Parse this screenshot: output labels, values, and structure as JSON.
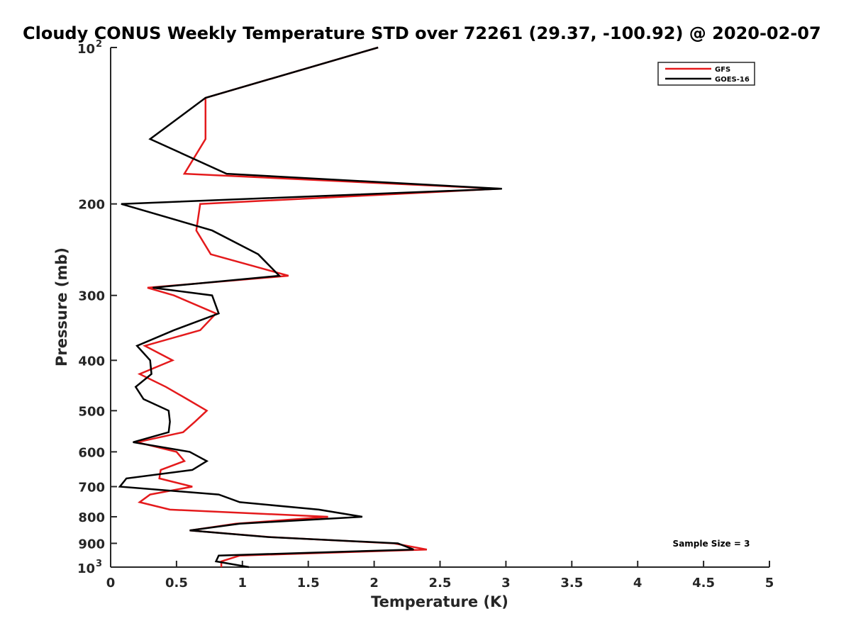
{
  "chart_data": {
    "type": "line",
    "title": "Cloudy CONUS Weekly Temperature STD over 72261 (29.37, -100.92) @ 2020-02-07",
    "xlabel": "Temperature (K)",
    "ylabel": "Pressure (mb)",
    "xlim": [
      0,
      5
    ],
    "ylim": [
      100,
      1000
    ],
    "y_scale": "log",
    "y_reversed": true,
    "grid": false,
    "legend_position": "top-right",
    "x_ticks": [
      "0",
      "0.5",
      "1",
      "1.5",
      "2",
      "2.5",
      "3",
      "3.5",
      "4",
      "4.5",
      "5"
    ],
    "y_ticks": [
      {
        "value": 100,
        "base": "10",
        "exp": "2"
      },
      {
        "value": 200,
        "label": "200"
      },
      {
        "value": 300,
        "label": "300"
      },
      {
        "value": 400,
        "label": "400"
      },
      {
        "value": 500,
        "label": "500"
      },
      {
        "value": 600,
        "label": "600"
      },
      {
        "value": 700,
        "label": "700"
      },
      {
        "value": 800,
        "label": "800"
      },
      {
        "value": 900,
        "label": "900"
      },
      {
        "value": 1000,
        "base": "10",
        "exp": "3"
      }
    ],
    "annotation": "Sample Size = 3",
    "series": [
      {
        "name": "GFS",
        "color": "#e41a1c",
        "points": [
          [
            2.03,
            100
          ],
          [
            0.72,
            125
          ],
          [
            0.72,
            150
          ],
          [
            0.56,
            175
          ],
          [
            2.95,
            187
          ],
          [
            0.68,
            200
          ],
          [
            0.65,
            225
          ],
          [
            0.76,
            250
          ],
          [
            1.35,
            275
          ],
          [
            0.28,
            290
          ],
          [
            0.48,
            300
          ],
          [
            0.8,
            325
          ],
          [
            0.68,
            350
          ],
          [
            0.26,
            375
          ],
          [
            0.47,
            400
          ],
          [
            0.22,
            425
          ],
          [
            0.42,
            450
          ],
          [
            0.58,
            475
          ],
          [
            0.73,
            500
          ],
          [
            0.64,
            525
          ],
          [
            0.55,
            550
          ],
          [
            0.2,
            575
          ],
          [
            0.5,
            600
          ],
          [
            0.56,
            625
          ],
          [
            0.38,
            650
          ],
          [
            0.37,
            675
          ],
          [
            0.62,
            700
          ],
          [
            0.3,
            725
          ],
          [
            0.22,
            750
          ],
          [
            0.45,
            775
          ],
          [
            1.65,
            800
          ],
          [
            0.95,
            825
          ],
          [
            0.6,
            850
          ],
          [
            1.2,
            875
          ],
          [
            2.15,
            900
          ],
          [
            2.4,
            925
          ],
          [
            0.98,
            950
          ],
          [
            0.84,
            975
          ],
          [
            0.84,
            1000
          ]
        ]
      },
      {
        "name": "GOES-16",
        "color": "#000000",
        "points": [
          [
            2.03,
            100
          ],
          [
            0.72,
            125
          ],
          [
            0.3,
            150
          ],
          [
            0.88,
            175
          ],
          [
            2.97,
            187
          ],
          [
            0.08,
            200
          ],
          [
            0.77,
            225
          ],
          [
            1.12,
            250
          ],
          [
            1.28,
            275
          ],
          [
            0.32,
            290
          ],
          [
            0.77,
            300
          ],
          [
            0.82,
            325
          ],
          [
            0.48,
            350
          ],
          [
            0.2,
            375
          ],
          [
            0.3,
            400
          ],
          [
            0.31,
            425
          ],
          [
            0.19,
            450
          ],
          [
            0.25,
            475
          ],
          [
            0.44,
            500
          ],
          [
            0.45,
            525
          ],
          [
            0.44,
            550
          ],
          [
            0.17,
            575
          ],
          [
            0.6,
            600
          ],
          [
            0.73,
            625
          ],
          [
            0.62,
            650
          ],
          [
            0.12,
            675
          ],
          [
            0.07,
            700
          ],
          [
            0.82,
            725
          ],
          [
            0.98,
            750
          ],
          [
            1.58,
            775
          ],
          [
            1.91,
            800
          ],
          [
            0.98,
            825
          ],
          [
            0.6,
            850
          ],
          [
            1.19,
            875
          ],
          [
            2.18,
            900
          ],
          [
            2.3,
            925
          ],
          [
            0.82,
            950
          ],
          [
            0.8,
            975
          ],
          [
            1.05,
            1000
          ]
        ]
      }
    ]
  }
}
